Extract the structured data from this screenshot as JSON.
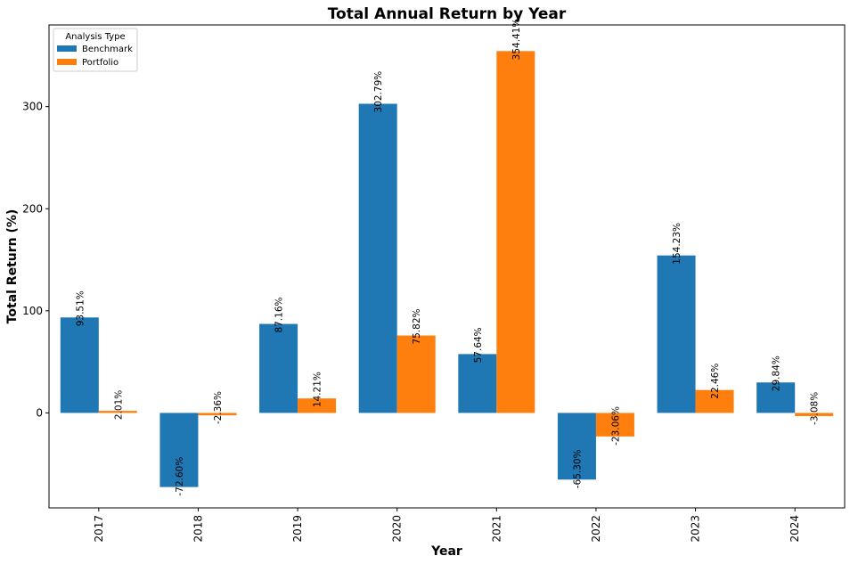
{
  "chart_data": {
    "type": "bar",
    "title": "Total Annual Return by Year",
    "xlabel": "Year",
    "ylabel": "Total Return (%)",
    "categories": [
      "2017",
      "2018",
      "2019",
      "2020",
      "2021",
      "2022",
      "2023",
      "2024"
    ],
    "series": [
      {
        "name": "Benchmark",
        "color": "#1f77b4",
        "values": [
          93.51,
          -72.6,
          87.16,
          302.79,
          57.64,
          -65.3,
          154.23,
          29.84
        ],
        "labels": [
          "93.51%",
          "-72.60%",
          "87.16%",
          "302.79%",
          "57.64%",
          "-65.30%",
          "154.23%",
          "29.84%"
        ]
      },
      {
        "name": "Portfolio",
        "color": "#ff7f0e",
        "values": [
          2.01,
          -2.36,
          14.21,
          75.82,
          354.41,
          -23.06,
          22.46,
          -3.08
        ],
        "labels": [
          "2.01%",
          "-2.36%",
          "14.21%",
          "75.82%",
          "354.41%",
          "-23.06%",
          "22.46%",
          "-3.08%"
        ]
      }
    ],
    "ylim": [
      -93,
      380
    ],
    "yticks": [
      0,
      100,
      200,
      300
    ],
    "ytick_labels": [
      "0",
      "100",
      "200",
      "300"
    ],
    "grid": false,
    "legend": {
      "title": "Analysis Type",
      "placement": "top-left"
    }
  }
}
